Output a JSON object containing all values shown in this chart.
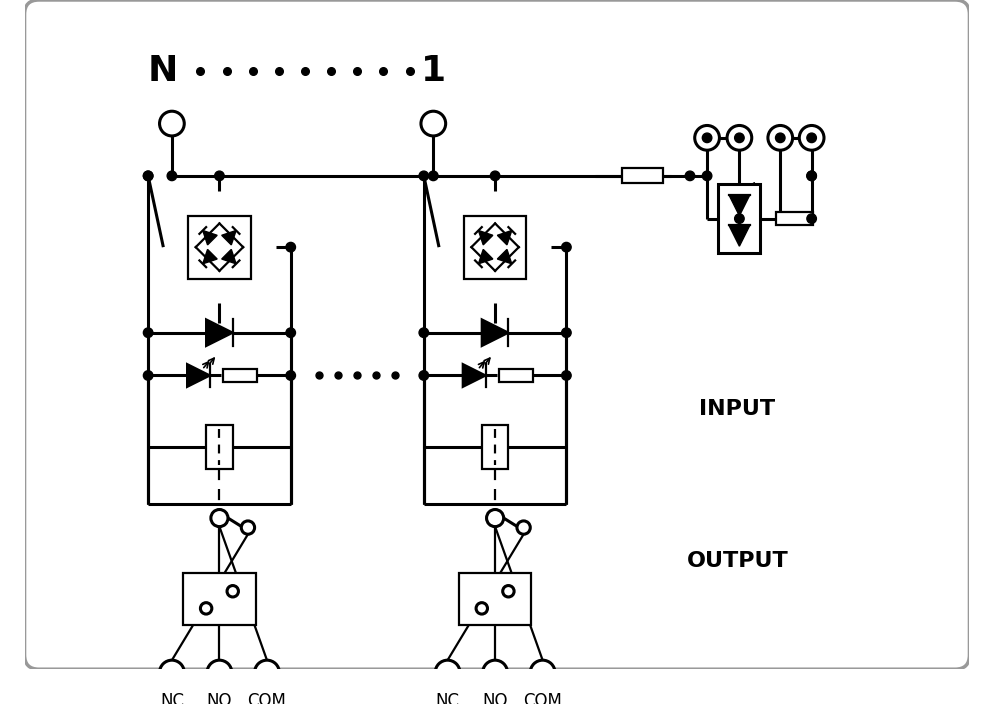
{
  "fig_w": 9.94,
  "fig_h": 7.04,
  "lw": 1.6,
  "lw2": 2.2,
  "fg": "#000000",
  "label_N": "N",
  "label_1": "1",
  "label_INPUT": "INPUT",
  "label_OUTPUT": "OUTPUT",
  "label_NC": "NC",
  "label_NO": "NO",
  "label_COM": "COM"
}
